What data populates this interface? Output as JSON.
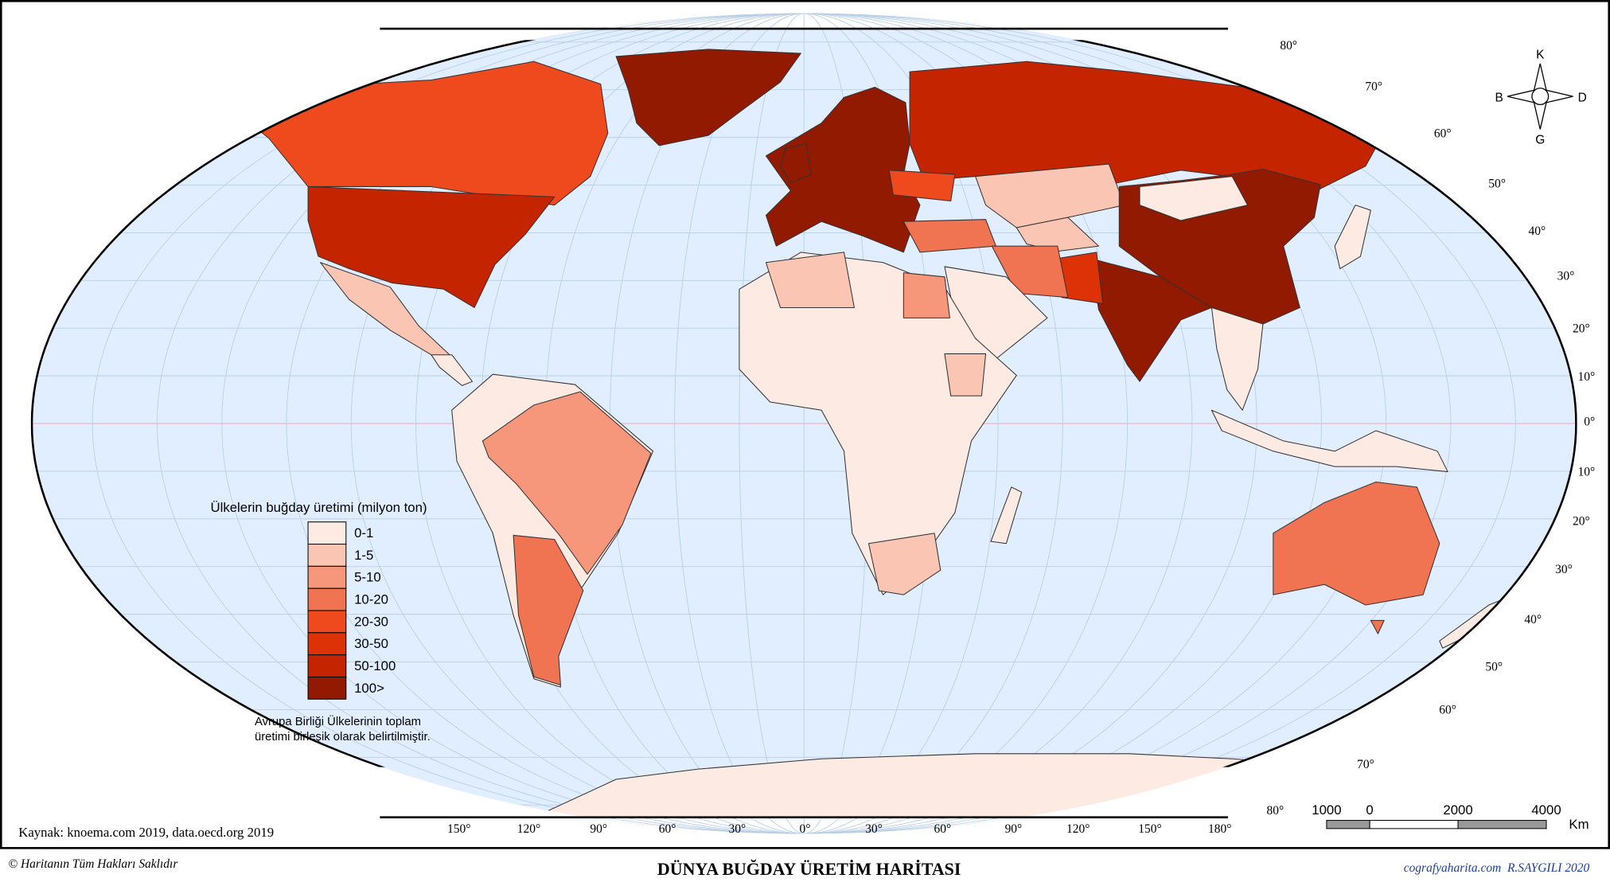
{
  "legend": {
    "title": "Ülkelerin buğday üretimi (milyon ton)",
    "items": [
      {
        "label": "0-1",
        "color": "#fdeae3"
      },
      {
        "label": "1-5",
        "color": "#fbc5b4"
      },
      {
        "label": "5-10",
        "color": "#f6977c"
      },
      {
        "label": "10-20",
        "color": "#f07352"
      },
      {
        "label": "20-30",
        "color": "#ee4a1e"
      },
      {
        "label": "30-50",
        "color": "#dd3108"
      },
      {
        "label": "50-100",
        "color": "#c42500"
      },
      {
        "label": "100>",
        "color": "#921a00"
      }
    ],
    "note": [
      "Avrupa Birliği Ülkelerinin toplam",
      "üretimi birleşik olarak belirtilmiştir."
    ]
  },
  "latitude_labels": [
    "80°",
    "70°",
    "60°",
    "50°",
    "40°",
    "30°",
    "20°",
    "10°",
    "0°",
    "10°",
    "20°",
    "30°",
    "40°",
    "50°",
    "60°",
    "70°",
    "80°"
  ],
  "longitude_labels": [
    "150°",
    "120°",
    "90°",
    "60°",
    "30°",
    "0°",
    "30°",
    "60°",
    "90°",
    "120°",
    "150°",
    "180°"
  ],
  "compass": {
    "north": "K",
    "west": "B",
    "east": "D",
    "south": "G"
  },
  "scale_bar": {
    "labels": [
      "1000",
      "0",
      "2000",
      "4000"
    ],
    "unit": "Km"
  },
  "source": "Kaynak: knoema.com 2019, data.oecd.org 2019",
  "copyright": "© Haritanın Tüm Hakları Saklıdır",
  "title": "DÜNYA BUĞDAY ÜRETİM HARİTASI",
  "credit": "cografyaharita.com  R.SAYGILI 2020"
}
